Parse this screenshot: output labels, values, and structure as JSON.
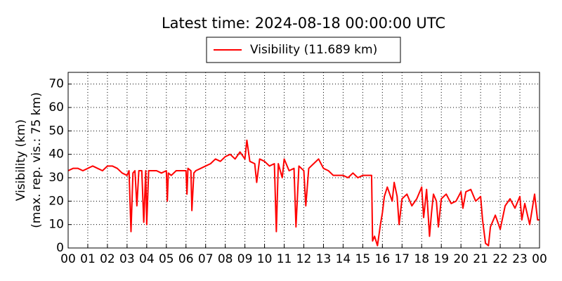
{
  "chart_data": {
    "type": "line",
    "title": "Latest time: 2024-08-18 00:00:00 UTC",
    "ylabel": [
      "Visibility (km)",
      "(max. rep. vis.: 75 km)"
    ],
    "x": [
      0,
      0.25,
      0.5,
      0.75,
      1,
      1.25,
      1.5,
      1.75,
      2,
      2.25,
      2.5,
      2.75,
      3,
      3.1,
      3.2,
      3.3,
      3.4,
      3.5,
      3.6,
      3.75,
      3.85,
      3.95,
      4,
      4.1,
      4.25,
      4.5,
      4.75,
      5,
      5.05,
      5.1,
      5.25,
      5.5,
      5.75,
      6,
      6.05,
      6.1,
      6.25,
      6.3,
      6.4,
      6.5,
      6.75,
      7,
      7.25,
      7.5,
      7.75,
      8,
      8.25,
      8.5,
      8.75,
      9,
      9.1,
      9.25,
      9.5,
      9.6,
      9.75,
      10,
      10.25,
      10.5,
      10.6,
      10.7,
      10.9,
      11,
      11.25,
      11.5,
      11.6,
      11.75,
      12,
      12.1,
      12.25,
      12.5,
      12.75,
      13,
      13.25,
      13.5,
      13.75,
      14,
      14.25,
      14.5,
      14.75,
      15,
      15.25,
      15.45,
      15.5,
      15.6,
      15.75,
      15.9,
      16,
      16.1,
      16.25,
      16.5,
      16.6,
      16.75,
      16.85,
      17,
      17.25,
      17.5,
      17.75,
      18,
      18.1,
      18.25,
      18.4,
      18.5,
      18.6,
      18.75,
      18.85,
      19,
      19.25,
      19.5,
      19.75,
      20,
      20.1,
      20.25,
      20.5,
      20.75,
      21,
      21.1,
      21.25,
      21.4,
      21.5,
      21.75,
      22,
      22.25,
      22.5,
      22.75,
      23,
      23.1,
      23.25,
      23.5,
      23.75,
      23.9,
      24
    ],
    "series": [
      {
        "name": "Visibility (11.689 km)",
        "color": "#ff0000",
        "values": [
          33,
          34,
          34,
          33,
          34,
          35,
          34,
          33,
          35,
          35,
          34,
          32,
          31,
          33,
          7,
          32,
          33,
          18,
          33,
          33,
          11,
          33,
          10,
          33,
          33,
          33,
          32,
          33,
          20,
          32,
          31,
          33,
          33,
          33,
          23,
          34,
          33,
          16,
          32,
          33,
          34,
          35,
          36,
          38,
          37,
          39,
          40,
          38,
          41,
          38,
          46,
          37,
          36,
          28,
          38,
          37,
          35,
          36,
          7,
          36,
          30,
          38,
          33,
          34,
          9,
          35,
          33,
          18,
          34,
          36,
          38,
          34,
          33,
          31,
          31,
          31,
          30,
          32,
          30,
          31,
          31,
          31,
          3,
          5,
          1,
          10,
          15,
          22,
          26,
          20,
          28,
          22,
          10,
          21,
          23,
          18,
          21,
          26,
          13,
          25,
          5,
          15,
          23,
          20,
          9,
          21,
          23,
          19,
          20,
          24,
          17,
          24,
          25,
          20,
          22,
          12,
          2,
          1,
          9,
          14,
          8,
          18,
          21,
          17,
          22,
          12,
          19,
          10,
          23,
          12,
          12
        ]
      }
    ],
    "xlim": [
      0,
      24
    ],
    "xticks": [
      {
        "value": 0,
        "label": "00"
      },
      {
        "value": 1,
        "label": "01"
      },
      {
        "value": 2,
        "label": "02"
      },
      {
        "value": 3,
        "label": "03"
      },
      {
        "value": 4,
        "label": "04"
      },
      {
        "value": 5,
        "label": "05"
      },
      {
        "value": 6,
        "label": "06"
      },
      {
        "value": 7,
        "label": "07"
      },
      {
        "value": 8,
        "label": "08"
      },
      {
        "value": 9,
        "label": "09"
      },
      {
        "value": 10,
        "label": "10"
      },
      {
        "value": 11,
        "label": "11"
      },
      {
        "value": 12,
        "label": "12"
      },
      {
        "value": 13,
        "label": "13"
      },
      {
        "value": 14,
        "label": "14"
      },
      {
        "value": 15,
        "label": "15"
      },
      {
        "value": 16,
        "label": "16"
      },
      {
        "value": 17,
        "label": "17"
      },
      {
        "value": 18,
        "label": "18"
      },
      {
        "value": 19,
        "label": "19"
      },
      {
        "value": 20,
        "label": "20"
      },
      {
        "value": 21,
        "label": "21"
      },
      {
        "value": 22,
        "label": "22"
      },
      {
        "value": 23,
        "label": "23"
      },
      {
        "value": 24,
        "label": "00"
      }
    ],
    "ylim": [
      0,
      75
    ],
    "yticks": [
      0,
      10,
      20,
      30,
      40,
      50,
      60,
      70
    ],
    "grid": true
  }
}
